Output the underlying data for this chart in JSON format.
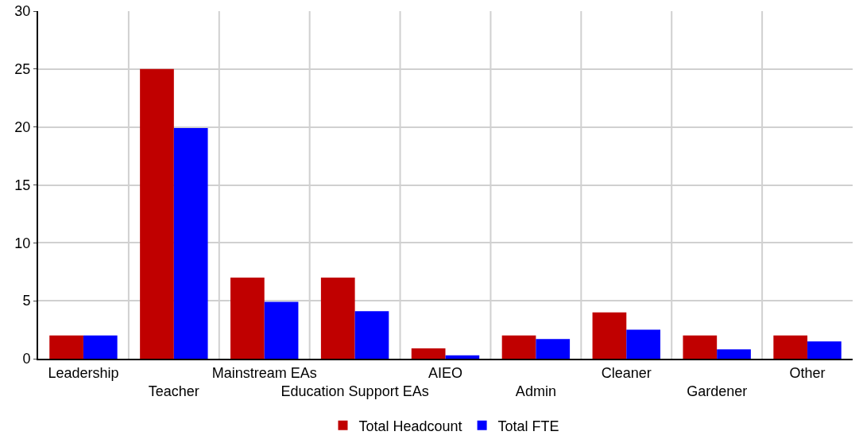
{
  "chart_data": {
    "type": "bar",
    "categories": [
      "Leadership",
      "Teacher",
      "Mainstream EAs",
      "Education Support EAs",
      "AIEO",
      "Admin",
      "Cleaner",
      "Gardener",
      "Other"
    ],
    "series": [
      {
        "name": "Total Headcount",
        "color": "#c00000",
        "values": [
          2,
          25,
          7,
          7,
          0.9,
          2,
          4,
          2,
          2
        ]
      },
      {
        "name": "Total FTE",
        "color": "#0000ff",
        "values": [
          2,
          19.9,
          4.9,
          4.1,
          0.3,
          1.7,
          2.5,
          0.8,
          1.5
        ]
      }
    ],
    "ylim": [
      0,
      30
    ],
    "yticks": [
      0,
      5,
      10,
      15,
      20,
      25,
      30
    ],
    "grid": true,
    "legend": "bottom"
  }
}
